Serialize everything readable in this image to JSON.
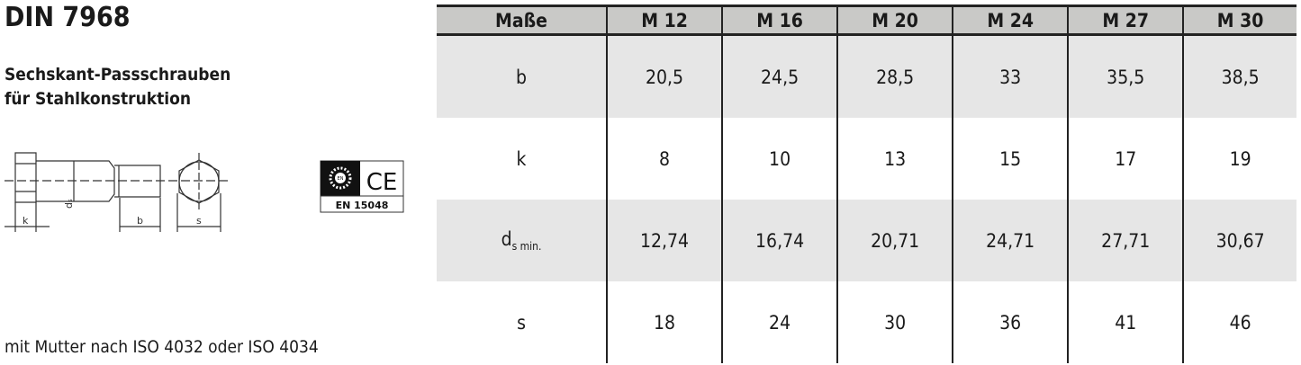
{
  "title": "DIN 7968",
  "subtitle": [
    "Sechskant-Passschrauben",
    "für Stahlkonstruktion"
  ],
  "footer": "mit Mutter nach ISO 4032 oder ISO 4034",
  "drawing": {
    "labels": {
      "k": "k",
      "ds": "d",
      "ds_sub": "s",
      "b": "b",
      "s": "s"
    }
  },
  "logo": {
    "en": "EN",
    "ce": "CE",
    "norm": "EN 15048"
  },
  "table": {
    "headers": [
      "Maße",
      "M 12",
      "M 16",
      "M 20",
      "M 24",
      "M 27",
      "M 30"
    ],
    "rows": [
      {
        "label": "b",
        "values": [
          "20,5",
          "24,5",
          "28,5",
          "33",
          "35,5",
          "38,5"
        ]
      },
      {
        "label": "k",
        "values": [
          "8",
          "10",
          "13",
          "15",
          "17",
          "19"
        ]
      },
      {
        "label": "d",
        "label_sub": "s min.",
        "values": [
          "12,74",
          "16,74",
          "20,71",
          "24,71",
          "27,71",
          "30,67"
        ]
      },
      {
        "label": "s",
        "values": [
          "18",
          "24",
          "30",
          "36",
          "41",
          "46"
        ]
      }
    ]
  },
  "colors": {
    "header_bg": "#c9c9c7",
    "stripe_bg": "#e6e6e6"
  }
}
